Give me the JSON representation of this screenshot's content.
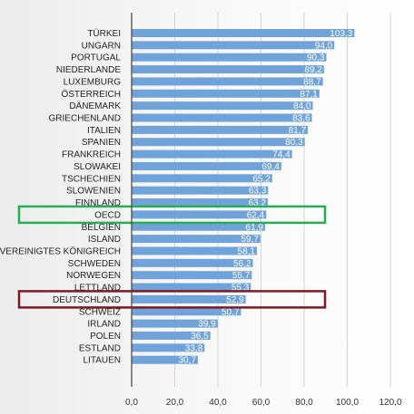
{
  "chart_data": {
    "type": "bar",
    "orientation": "horizontal",
    "categories": [
      "TÜRKEI",
      "UNGARN",
      "PORTUGAL",
      "NIEDERLANDE",
      "LUXEMBURG",
      "ÖSTERREICH",
      "DÄNEMARK",
      "GRIECHENLAND",
      "ITALIEN",
      "SPANIEN",
      "FRANKREICH",
      "SLOWAKEI",
      "TSCHECHIEN",
      "SLOWENIEN",
      "FINNLAND",
      "OECD",
      "BELGIEN",
      "ISLAND",
      "VEREINIGTES KÖNIGREICH",
      "SCHWEDEN",
      "NORWEGEN",
      "LETTLAND",
      "DEUTSCHLAND",
      "SCHWEIZ",
      "IRLAND",
      "POLEN",
      "ESTLAND",
      "LITAUEN"
    ],
    "values": [
      103.3,
      94.0,
      90.3,
      89.2,
      88.7,
      87.1,
      84.0,
      83.6,
      81.7,
      80.3,
      74.4,
      69.4,
      65.2,
      63.3,
      63.2,
      62.4,
      61.9,
      59.7,
      58.1,
      56.2,
      55.7,
      55.3,
      52.9,
      50.7,
      39.9,
      36.5,
      33.8,
      30.7
    ],
    "value_labels": [
      "103,3",
      "94,0",
      "90,3",
      "89,2",
      "88,7",
      "87,1",
      "84,0",
      "83,6",
      "81,7",
      "80,3",
      "74,4",
      "69,4",
      "65,2",
      "63,3",
      "63,2",
      "62,4",
      "61,9",
      "59,7",
      "58,1",
      "56,2",
      "55,7",
      "55,3",
      "52,9",
      "50,7",
      "39,9",
      "36,5",
      "33,8",
      "30,7"
    ],
    "xlim": [
      0,
      120
    ],
    "x_ticks": [
      0,
      20,
      40,
      60,
      80,
      100,
      120
    ],
    "x_tick_labels": [
      "0,0",
      "20,0",
      "40,0",
      "60,0",
      "80,0",
      "100,0",
      "120,0"
    ],
    "grid": "vertical",
    "title": "",
    "xlabel": "",
    "ylabel": "",
    "colors": {
      "bar": "#6fa3d9",
      "grid": "#d4d4d4",
      "axis": "#404040"
    },
    "highlights": [
      {
        "category": "OECD",
        "color": "#27ae4f"
      },
      {
        "category": "DEUTSCHLAND",
        "color": "#7b1a22"
      }
    ]
  }
}
